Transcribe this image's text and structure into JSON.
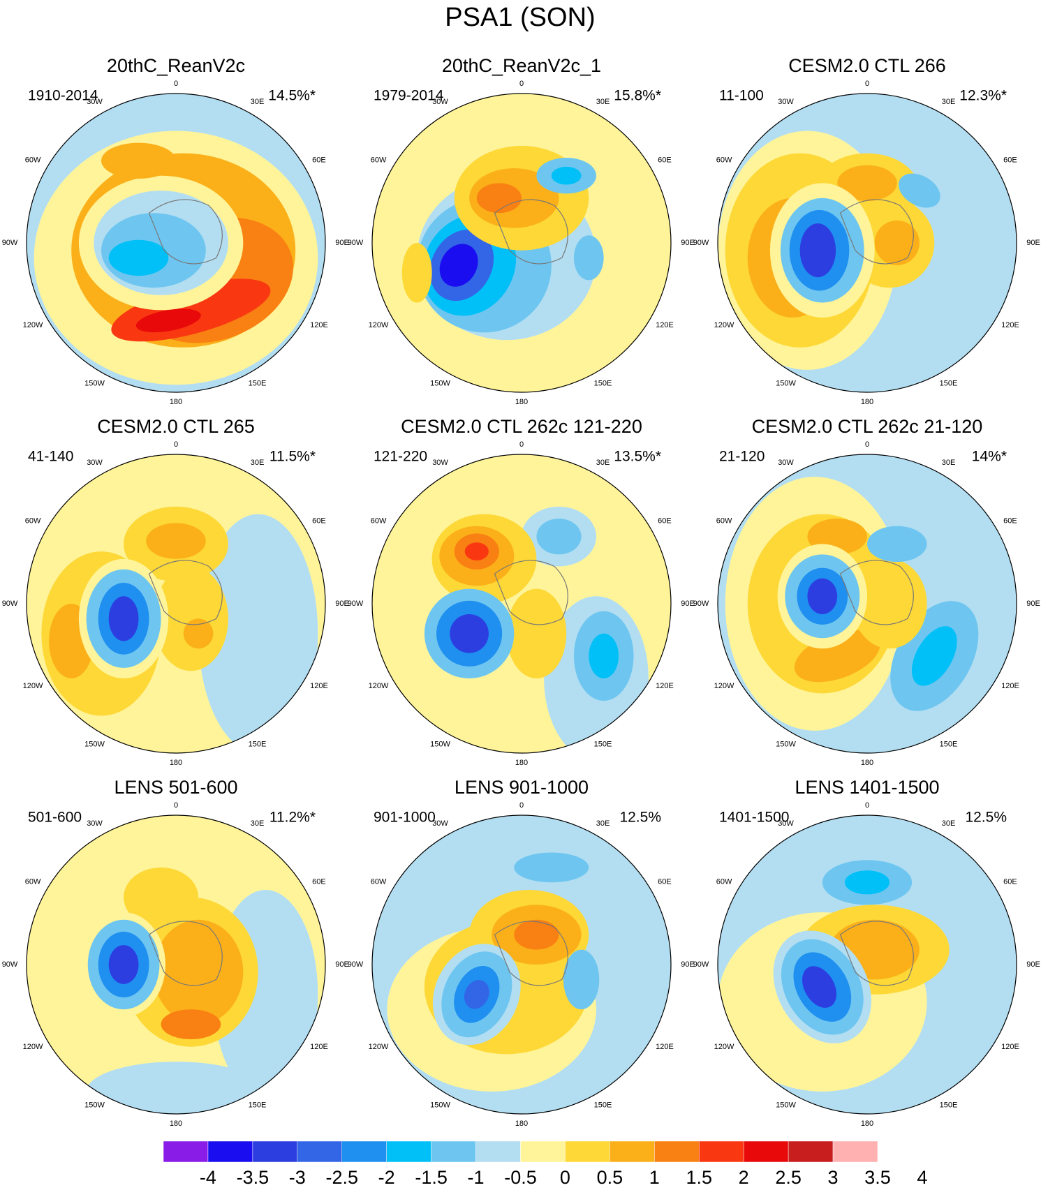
{
  "title": "PSA1 (SON)",
  "panels": [
    {
      "title": "20thC_ReanV2c",
      "period": "1910-2014",
      "variance": "14.5%*"
    },
    {
      "title": "20thC_ReanV2c_1",
      "period": "1979-2014",
      "variance": "15.8%*"
    },
    {
      "title": "CESM2.0 CTL 266",
      "period": "11-100",
      "variance": "12.3%*"
    },
    {
      "title": "CESM2.0 CTL 265",
      "period": "41-140",
      "variance": "11.5%*"
    },
    {
      "title": "CESM2.0 CTL 262c 121-220",
      "period": "121-220",
      "variance": "13.5%*"
    },
    {
      "title": "CESM2.0 CTL 262c 21-120",
      "period": "21-120",
      "variance": "14%*"
    },
    {
      "title": "LENS 501-600",
      "period": "501-600",
      "variance": "11.2%*"
    },
    {
      "title": "LENS 901-1000",
      "period": "901-1000",
      "variance": "12.5%"
    },
    {
      "title": "LENS 1401-1500",
      "period": "1401-1500",
      "variance": "12.5%"
    }
  ],
  "longitude_labels": [
    "0",
    "30E",
    "60E",
    "90E",
    "120E",
    "150E",
    "180",
    "150W",
    "120W",
    "90W",
    "60W",
    "30W"
  ],
  "colorbar": {
    "levels": [
      -4,
      -3.5,
      -3,
      -2.5,
      -2,
      -1.5,
      -1,
      -0.5,
      0,
      0.5,
      1,
      1.5,
      2,
      2.5,
      3,
      3.5,
      4
    ],
    "colors": [
      "#8a1ce8",
      "#1a0df0",
      "#2c3ee0",
      "#3366e6",
      "#1f8ff0",
      "#00c0f7",
      "#6ec6f0",
      "#b3def2",
      "#fff49a",
      "#fdd836",
      "#fbb01a",
      "#f98012",
      "#f93812",
      "#e80a0a",
      "#c81e1e",
      "#ffb0b0"
    ]
  }
}
